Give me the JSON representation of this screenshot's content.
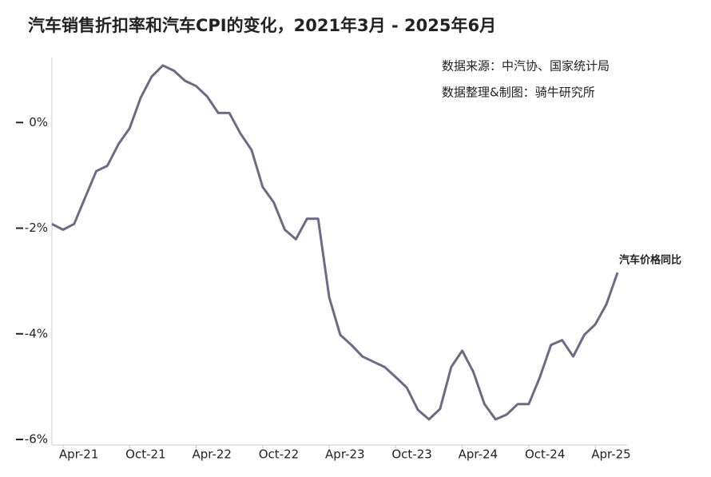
{
  "chart_data": {
    "type": "line",
    "title": "汽车销售折扣率和汽车CPI的变化，2021年3月 - 2025年6月",
    "annotations": [
      "数据来源：中汽协、国家统计局",
      "数据整理&制图：骑牛研究所"
    ],
    "categories": [
      null,
      "Apr-21",
      null,
      null,
      null,
      null,
      null,
      "Oct-21",
      null,
      null,
      null,
      null,
      null,
      "Apr-22",
      null,
      null,
      null,
      null,
      null,
      "Oct-22",
      null,
      null,
      null,
      null,
      null,
      "Apr-23",
      null,
      null,
      null,
      null,
      null,
      "Oct-23",
      null,
      null,
      null,
      null,
      null,
      "Apr-24",
      null,
      null,
      null,
      null,
      null,
      "Oct-24",
      null,
      null,
      null,
      null,
      null,
      "Apr-25",
      null,
      null
    ],
    "series": [
      {
        "name": "汽车价格同比",
        "color": "#6e6a82",
        "values": [
          -1.92,
          -2.03,
          -1.92,
          -1.42,
          -0.92,
          -0.82,
          -0.41,
          -0.11,
          0.47,
          0.87,
          1.08,
          0.98,
          0.79,
          0.69,
          0.49,
          0.18,
          0.18,
          -0.21,
          -0.52,
          -1.22,
          -1.51,
          -2.03,
          -2.21,
          -1.82,
          -1.82,
          -3.31,
          -4.02,
          -4.21,
          -4.43,
          -4.53,
          -4.63,
          -4.82,
          -5.02,
          -5.44,
          -5.62,
          -5.42,
          -4.63,
          -4.32,
          -4.72,
          -5.33,
          -5.62,
          -5.53,
          -5.33,
          -5.33,
          -4.82,
          -4.21,
          -4.12,
          -4.43,
          -4.02,
          -3.82,
          -3.44,
          -2.84
        ]
      }
    ],
    "ylim": [
      -6,
      1.2
    ],
    "yticks": [
      {
        "value": 0,
        "label": "0%"
      },
      {
        "value": -2,
        "label": "-2%"
      },
      {
        "value": -4,
        "label": "-4%"
      },
      {
        "value": -6,
        "label": "-6%"
      }
    ]
  }
}
